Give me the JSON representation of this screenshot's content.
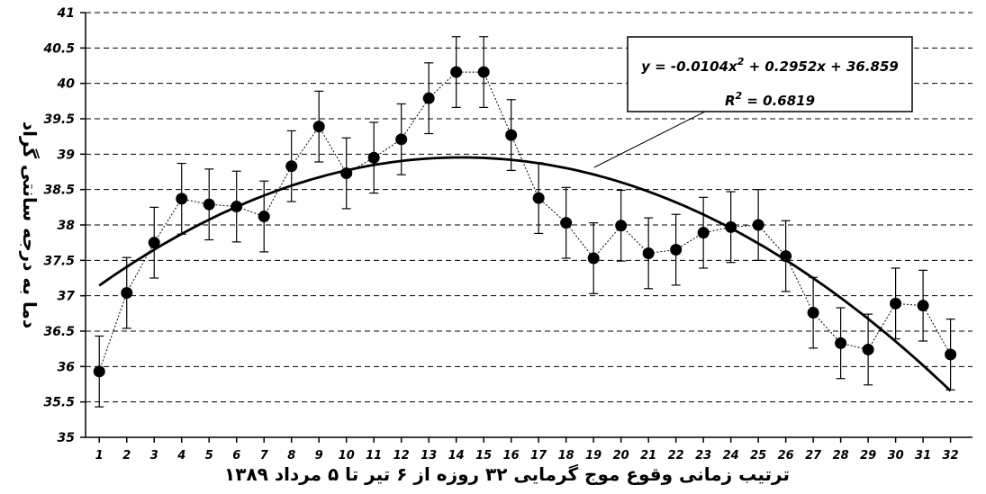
{
  "chart_data": {
    "type": "scatter",
    "xlabel": "ترتیب زمانی وقوع موج گرمایی ۳۲ روزه از ۶ تیر تا ۵ مرداد ۱۳۸۹",
    "ylabel": "دما به درجه سانتی گراد",
    "xlim": [
      1,
      32
    ],
    "ylim": [
      35,
      41
    ],
    "y_ticks": [
      "35",
      "35.5",
      "36",
      "36.5",
      "37",
      "37.5",
      "38",
      "38.5",
      "39",
      "39.5",
      "40",
      "40.5",
      "41"
    ],
    "x_ticks": [
      "1",
      "2",
      "3",
      "4",
      "5",
      "6",
      "7",
      "8",
      "9",
      "10",
      "11",
      "12",
      "13",
      "14",
      "15",
      "16",
      "17",
      "18",
      "19",
      "20",
      "21",
      "22",
      "23",
      "24",
      "25",
      "26",
      "27",
      "28",
      "29",
      "30",
      "31",
      "32"
    ],
    "grid": "horizontal-dashed",
    "x": [
      1,
      2,
      3,
      4,
      5,
      6,
      7,
      8,
      9,
      10,
      11,
      12,
      13,
      14,
      15,
      16,
      17,
      18,
      19,
      20,
      21,
      22,
      23,
      24,
      25,
      26,
      27,
      28,
      29,
      30,
      31,
      32
    ],
    "values": [
      35.93,
      37.04,
      37.75,
      38.37,
      38.29,
      38.26,
      38.12,
      38.83,
      39.39,
      38.73,
      38.95,
      39.21,
      39.79,
      40.16,
      40.16,
      39.27,
      38.38,
      38.03,
      37.53,
      37.99,
      37.6,
      37.65,
      37.89,
      37.97,
      38.0,
      37.56,
      36.76,
      36.33,
      36.24,
      36.89,
      36.86,
      36.17
    ],
    "error": 0.5,
    "trendline": {
      "type": "polynomial",
      "a": -0.0104,
      "b": 0.2952,
      "c": 36.859
    },
    "equation_lines": [
      "y = -0.0104x",
      "2",
      " + 0.2952x + 36.859"
    ],
    "r2_lines": [
      "R",
      "2",
      " = 0.6819"
    ]
  }
}
